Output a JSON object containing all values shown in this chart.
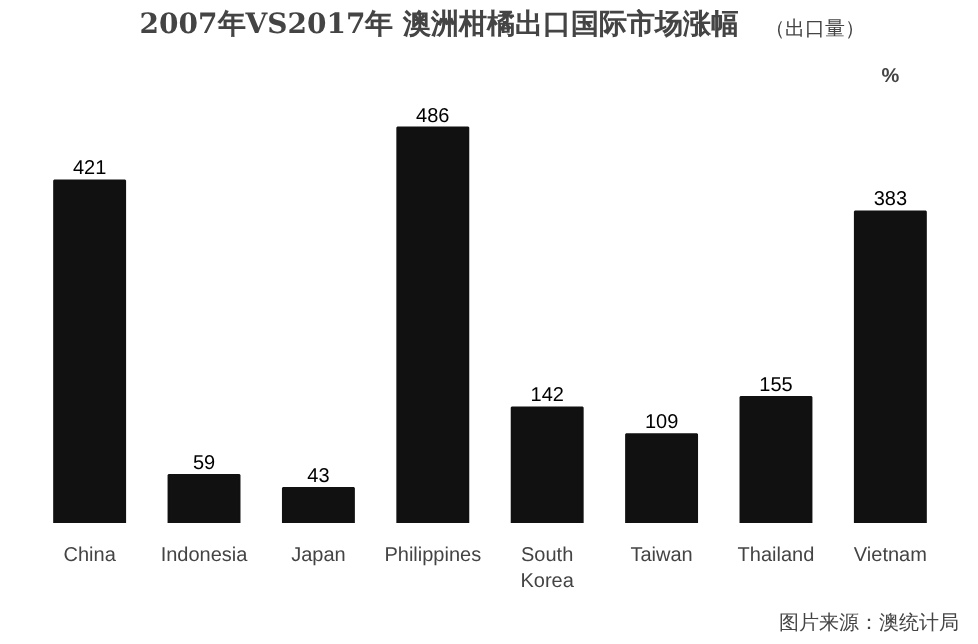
{
  "chart_data": {
    "type": "bar",
    "title": "2007年VS2017年  澳洲柑橘出口国际市场涨幅",
    "subtitle": "（出口量）",
    "categories": [
      "China",
      "Indonesia",
      "Japan",
      "Philippines",
      "South Korea",
      "Taiwan",
      "Thailand",
      "Vietnam"
    ],
    "values": [
      421,
      59,
      43,
      486,
      142,
      109,
      155,
      383
    ],
    "color": "#111111",
    "data_labels": true,
    "grid": false,
    "tick_labels": "x",
    "annotations": [
      "%",
      "图片来源：澳统计局"
    ]
  }
}
